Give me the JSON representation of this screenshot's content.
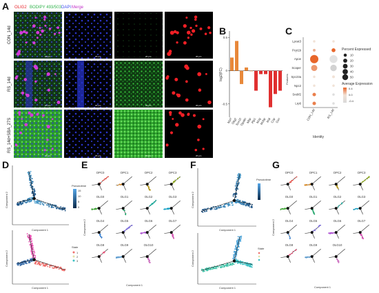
{
  "panel_a": {
    "letter": "A",
    "legend": [
      {
        "text": "OLIG2",
        "color": "#e8232a"
      },
      {
        "text": "BODIPY 493/503",
        "color": "#2fb34a"
      },
      {
        "text": "DAPI",
        "color": "#3a4cf0"
      },
      {
        "text": "Merge",
        "color": "#c233c8"
      }
    ],
    "row_labels": [
      "CON_14d",
      "RS_14d",
      "RS_14d+SBA_27S"
    ],
    "scale_text": "20 μm"
  },
  "panel_b": {
    "letter": "B",
    "ylabel": "log2(FC)"
  },
  "panel_c": {
    "letter": "C",
    "xlabel": "Identity",
    "ylabel": "Features",
    "size_legend_title": "Percent Expressed",
    "size_legend_values": [
      "10",
      "20",
      "30",
      "40",
      "50"
    ],
    "color_legend_title": "Average Expression",
    "color_legend_values": [
      "0.4",
      "0.0",
      "-0.4"
    ]
  },
  "panel_d": {
    "letter": "D",
    "xlabel": "Component 1",
    "ylabel": "Component 2",
    "pseudotime_title": "Pseudotime",
    "pseudotime_ticks": [
      "15",
      "10",
      "5",
      "0"
    ],
    "state_title": "State",
    "state_values": [
      "1",
      "2",
      "3"
    ]
  },
  "panel_e": {
    "letter": "E",
    "xlabel": "Component 1",
    "ylabel": "Component 2",
    "cluster_labels": [
      "OPC0",
      "OPC1",
      "OPC2",
      "OPC3",
      "OLG0",
      "OLG1",
      "OLG2",
      "OLG3",
      "OLG4",
      "OLG5",
      "OLG6",
      "OLG7",
      "OLG8",
      "OLG9",
      "OLG10"
    ]
  },
  "panel_f": {
    "letter": "F",
    "xlabel": "Component 1",
    "ylabel": "Component 2",
    "pseudotime_title": "Pseudotime",
    "state_title": "State"
  },
  "panel_g": {
    "letter": "G",
    "xlabel": "Component 1",
    "ylabel": "Component 2",
    "cluster_labels": [
      "OPC0",
      "OPC1",
      "OPC2",
      "OPC3",
      "OLG0",
      "OLG1",
      "OLG2",
      "OLG3",
      "OLG4",
      "OLG5",
      "OLG6",
      "OLG7",
      "OLG8",
      "OLG9",
      "OLG10"
    ]
  },
  "chart_data": [
    {
      "type": "bar",
      "panel": "B",
      "categories": [
        "Myrf",
        "Olig2",
        "Sox10",
        "Opalin",
        "Mbp",
        "Plp1",
        "Mog",
        "Mobp",
        "Mal",
        "Cnp",
        "Gsn"
      ],
      "values": [
        0.2,
        0.45,
        -0.2,
        0.05,
        0.0,
        -0.3,
        -0.05,
        -0.05,
        -0.55,
        -0.35,
        -0.3
      ],
      "colors": [
        "#e8883a",
        "#e8883a",
        "#e8883a",
        "#e8883a",
        "#e8883a",
        "#e03030",
        "#e03030",
        "#e03030",
        "#e03030",
        "#e03030",
        "#e03030"
      ],
      "ylabel": "log2(FC)",
      "ylim": [
        -0.7,
        0.6
      ],
      "yticks": [
        0.5,
        0,
        -0.5
      ]
    },
    {
      "type": "dot",
      "panel": "C",
      "features": [
        "Lpcat3",
        "Pcyt1b",
        "Apoe",
        "Scaper",
        "Spc23a",
        "Npc2",
        "Srebf2",
        "Lrp6"
      ],
      "identities": [
        "CON_14d",
        "RS_14d"
      ],
      "points": [
        {
          "feature": "Lpcat3",
          "identity": "CON_14d",
          "pct": 2,
          "avg": 0.0
        },
        {
          "feature": "Lpcat3",
          "identity": "RS_14d",
          "pct": 2,
          "avg": 0.0
        },
        {
          "feature": "Pcyt1b",
          "identity": "CON_14d",
          "pct": 3,
          "avg": 0.2
        },
        {
          "feature": "Pcyt1b",
          "identity": "RS_14d",
          "pct": 8,
          "avg": 0.5
        },
        {
          "feature": "Apoe",
          "identity": "CON_14d",
          "pct": 50,
          "avg": 0.5
        },
        {
          "feature": "Apoe",
          "identity": "RS_14d",
          "pct": 45,
          "avg": -0.1
        },
        {
          "feature": "Scaper",
          "identity": "CON_14d",
          "pct": 25,
          "avg": 0.3
        },
        {
          "feature": "Scaper",
          "identity": "RS_14d",
          "pct": 28,
          "avg": -0.5
        },
        {
          "feature": "Spc23a",
          "identity": "CON_14d",
          "pct": 2,
          "avg": 0.0
        },
        {
          "feature": "Spc23a",
          "identity": "RS_14d",
          "pct": 3,
          "avg": 0.0
        },
        {
          "feature": "Npc2",
          "identity": "CON_14d",
          "pct": 2,
          "avg": 0.0
        },
        {
          "feature": "Npc2",
          "identity": "RS_14d",
          "pct": 2,
          "avg": 0.0
        },
        {
          "feature": "Srebf2",
          "identity": "CON_14d",
          "pct": 6,
          "avg": 0.4
        },
        {
          "feature": "Srebf2",
          "identity": "RS_14d",
          "pct": 2,
          "avg": -0.2
        },
        {
          "feature": "Lrp6",
          "identity": "CON_14d",
          "pct": 6,
          "avg": 0.4
        },
        {
          "feature": "Lrp6",
          "identity": "RS_14d",
          "pct": 2,
          "avg": -0.2
        }
      ]
    }
  ]
}
